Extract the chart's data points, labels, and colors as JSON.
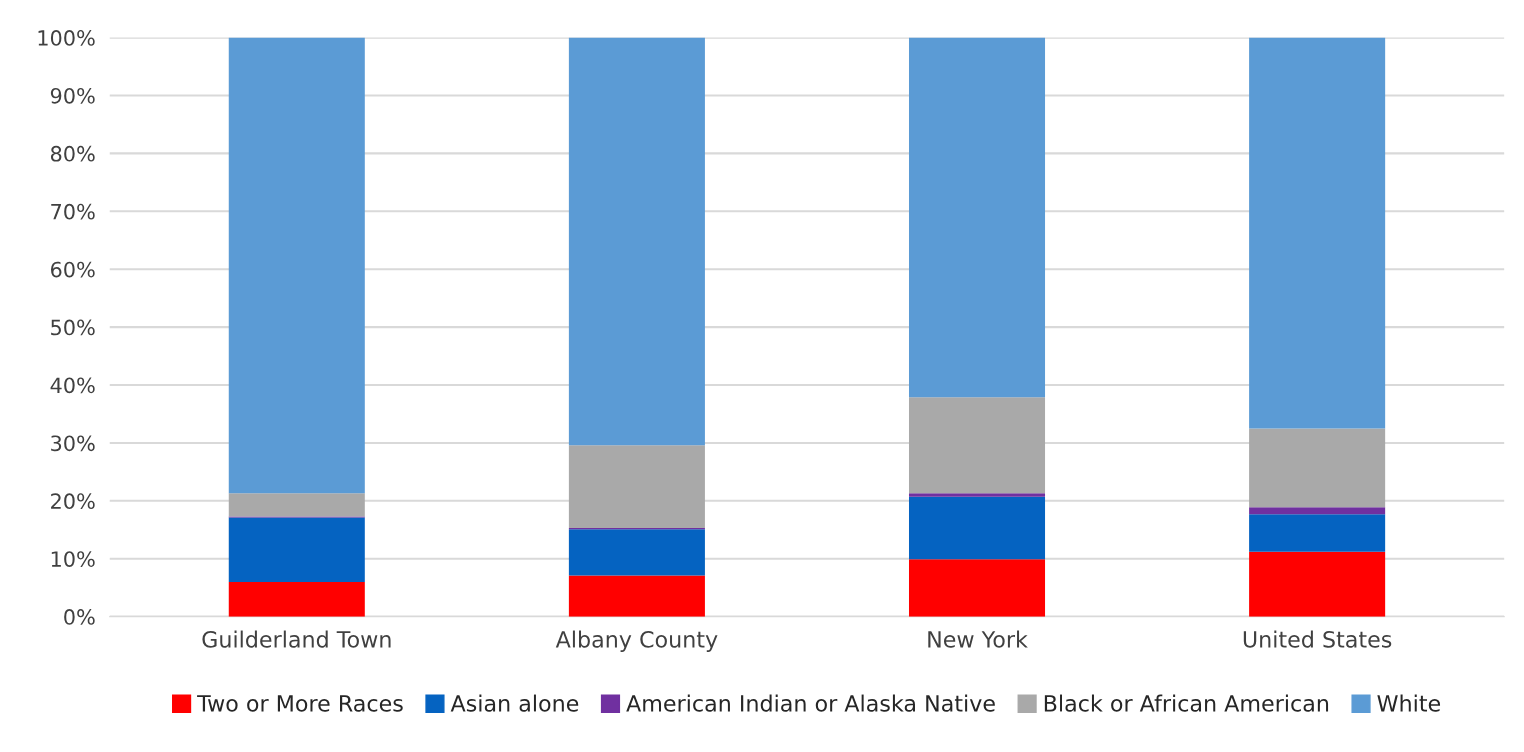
{
  "chart_data": {
    "type": "bar",
    "stacked": true,
    "categories": [
      "Guilderland Town",
      "Albany County",
      "New York",
      "United States"
    ],
    "series": [
      {
        "name": "Two or More Races",
        "color": "#ff0000",
        "values": [
          6.0,
          7.1,
          9.9,
          11.2
        ]
      },
      {
        "name": "Asian alone",
        "color": "#0563c1",
        "values": [
          11.1,
          8.0,
          10.8,
          6.5
        ]
      },
      {
        "name": "American Indian or Alaska Native",
        "color": "#7030a0",
        "values": [
          0.2,
          0.2,
          0.6,
          1.2
        ]
      },
      {
        "name": "Black or African American",
        "color": "#a9a9a9",
        "values": [
          4.0,
          14.3,
          16.6,
          13.6
        ]
      },
      {
        "name": "White",
        "color": "#5b9bd5",
        "values": [
          78.7,
          70.4,
          62.1,
          67.5
        ]
      }
    ],
    "ylim": [
      0,
      100
    ],
    "yticks": [
      {
        "value": 0,
        "label": "0%"
      },
      {
        "value": 10,
        "label": "10%"
      },
      {
        "value": 20,
        "label": "20%"
      },
      {
        "value": 30,
        "label": "30%"
      },
      {
        "value": 40,
        "label": "40%"
      },
      {
        "value": 50,
        "label": "50%"
      },
      {
        "value": 60,
        "label": "60%"
      },
      {
        "value": 70,
        "label": "70%"
      },
      {
        "value": 80,
        "label": "80%"
      },
      {
        "value": 90,
        "label": "90%"
      },
      {
        "value": 100,
        "label": "100%"
      }
    ],
    "grid": "y",
    "legend": "bottom"
  }
}
